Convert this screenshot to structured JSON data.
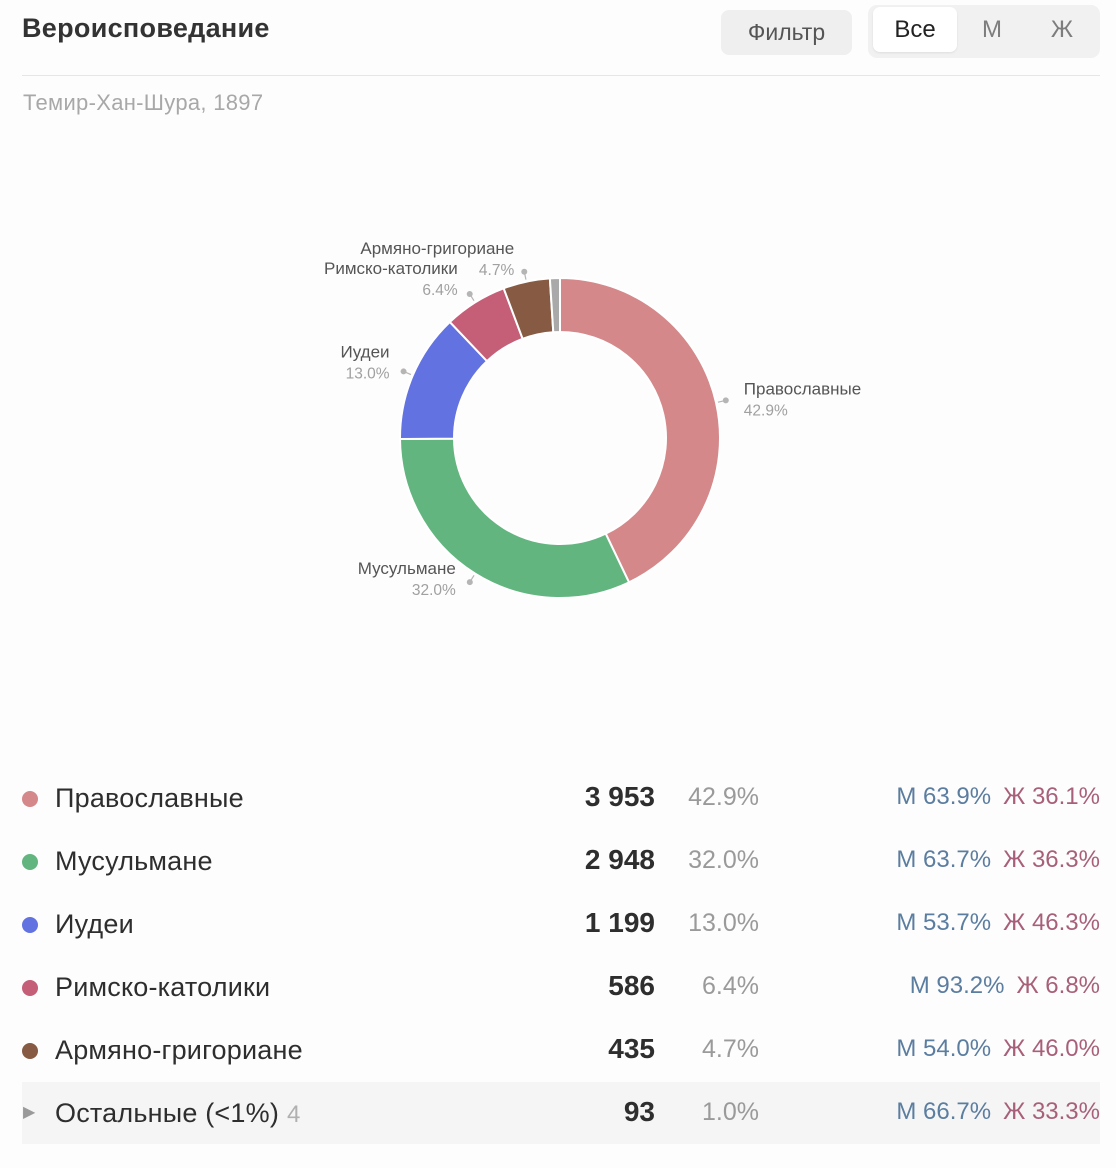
{
  "header": {
    "title": "Вероисповедание",
    "filter_label": "Фильтр",
    "segments": [
      "Все",
      "М",
      "Ж"
    ],
    "active_segment": "Все"
  },
  "subtitle": "Темир-Хан-Шура, 1897",
  "colors": {
    "orthodox": "#d4888a",
    "muslim": "#62b57f",
    "jewish": "#6272e0",
    "catholic": "#c55e77",
    "armenian": "#875a43",
    "other": "#a9a9a9",
    "male": "#5b7da0",
    "female": "#a8607a"
  },
  "chart_data": {
    "type": "pie",
    "donut": true,
    "slices": [
      {
        "label": "Православные",
        "value": 3953,
        "percent": 42.9,
        "pct_label": "42.9%",
        "color": "#d4888a"
      },
      {
        "label": "Мусульмане",
        "value": 2948,
        "percent": 32.0,
        "pct_label": "32.0%",
        "color": "#62b57f"
      },
      {
        "label": "Иудеи",
        "value": 1199,
        "percent": 13.0,
        "pct_label": "13.0%",
        "color": "#6272e0"
      },
      {
        "label": "Римско-католики",
        "value": 586,
        "percent": 6.4,
        "pct_label": "6.4%",
        "color": "#c55e77"
      },
      {
        "label": "Армяно-григориане",
        "value": 435,
        "percent": 4.7,
        "pct_label": "4.7%",
        "color": "#875a43"
      },
      {
        "label": "",
        "value": 93,
        "percent": 1.0,
        "pct_label": "",
        "color": "#a9a9a9"
      }
    ]
  },
  "table": {
    "rows": [
      {
        "name": "Православные",
        "value": "3 953",
        "pct": "42.9%",
        "m": "М 63.9%",
        "f": "Ж 36.1%",
        "color": "#d4888a"
      },
      {
        "name": "Мусульмане",
        "value": "2 948",
        "pct": "32.0%",
        "m": "М 63.7%",
        "f": "Ж 36.3%",
        "color": "#62b57f"
      },
      {
        "name": "Иудеи",
        "value": "1 199",
        "pct": "13.0%",
        "m": "М 53.7%",
        "f": "Ж 46.3%",
        "color": "#6272e0"
      },
      {
        "name": "Римско-католики",
        "value": "586",
        "pct": "6.4%",
        "m": "М 93.2%",
        "f": "Ж 6.8%",
        "color": "#c55e77"
      },
      {
        "name": "Армяно-григориане",
        "value": "435",
        "pct": "4.7%",
        "m": "М 54.0%",
        "f": "Ж 46.0%",
        "color": "#875a43"
      }
    ],
    "other": {
      "name": "Остальные (<1%)",
      "count": "4",
      "value": "93",
      "pct": "1.0%",
      "m": "М 66.7%",
      "f": "Ж 33.3%",
      "expand_icon": "triangle-right-icon"
    }
  }
}
